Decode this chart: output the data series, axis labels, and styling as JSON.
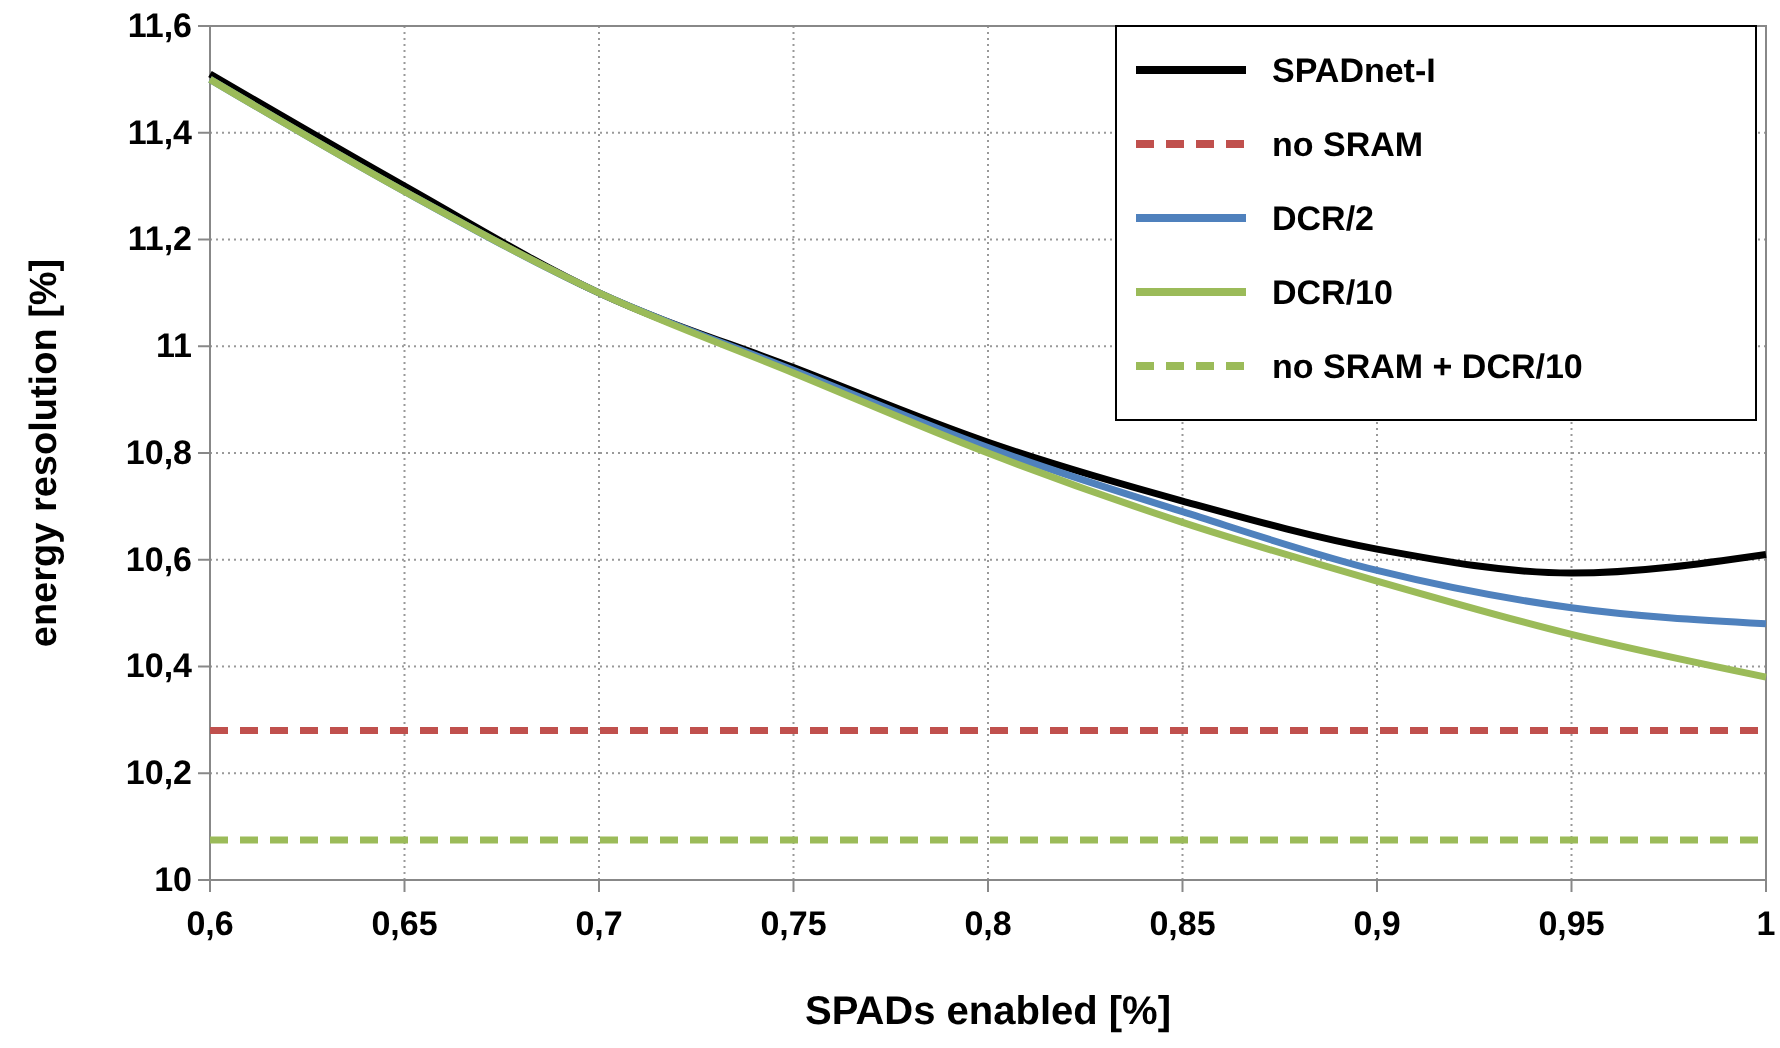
{
  "chart_data": {
    "type": "line",
    "xlabel": "SPADs enabled [%]",
    "ylabel": "energy resolution [%]",
    "x": [
      0.6,
      0.65,
      0.7,
      0.75,
      0.8,
      0.85,
      0.9,
      0.95,
      1
    ],
    "series": [
      {
        "name": "SPADnet-I",
        "color": "#000000",
        "line_style": "solid",
        "values": [
          11.51,
          11.3,
          11.1,
          10.96,
          10.82,
          10.71,
          10.62,
          10.575,
          10.61
        ]
      },
      {
        "name": "no SRAM",
        "color": "#c0504d",
        "line_style": "dashed",
        "values": [
          10.28,
          10.28,
          10.28,
          10.28,
          10.28,
          10.28,
          10.28,
          10.28,
          10.28
        ]
      },
      {
        "name": "DCR/2",
        "color": "#4f81bd",
        "line_style": "solid",
        "values": [
          11.5,
          11.29,
          11.1,
          10.955,
          10.81,
          10.69,
          10.58,
          10.51,
          10.48
        ]
      },
      {
        "name": "DCR/10",
        "color": "#9bbb59",
        "line_style": "solid",
        "values": [
          11.5,
          11.29,
          11.1,
          10.95,
          10.8,
          10.67,
          10.56,
          10.46,
          10.38
        ]
      },
      {
        "name": "no SRAM + DCR/10",
        "color": "#9bbb59",
        "line_style": "dashed",
        "values": [
          10.075,
          10.075,
          10.075,
          10.075,
          10.075,
          10.075,
          10.075,
          10.075,
          10.075
        ]
      }
    ],
    "xlim": [
      0.6,
      1
    ],
    "xticks": [
      {
        "value": 0.6,
        "label": "0,6"
      },
      {
        "value": 0.65,
        "label": "0,65"
      },
      {
        "value": 0.7,
        "label": "0,7"
      },
      {
        "value": 0.75,
        "label": "0,75"
      },
      {
        "value": 0.8,
        "label": "0,8"
      },
      {
        "value": 0.85,
        "label": "0,85"
      },
      {
        "value": 0.9,
        "label": "0,9"
      },
      {
        "value": 0.95,
        "label": "0,95"
      },
      1
    ],
    "ylim": [
      10,
      11.6
    ],
    "yticks": [
      10,
      {
        "value": 10.2,
        "label": "10,2"
      },
      {
        "value": 10.4,
        "label": "10,4"
      },
      {
        "value": 10.6,
        "label": "10,6"
      },
      {
        "value": 10.8,
        "label": "10,8"
      },
      11,
      {
        "value": 11.2,
        "label": "11,2"
      },
      {
        "value": 11.4,
        "label": "11,4"
      },
      {
        "value": 11.6,
        "label": "11,6"
      }
    ],
    "grid": true,
    "legend": "top right",
    "marker": "none"
  }
}
